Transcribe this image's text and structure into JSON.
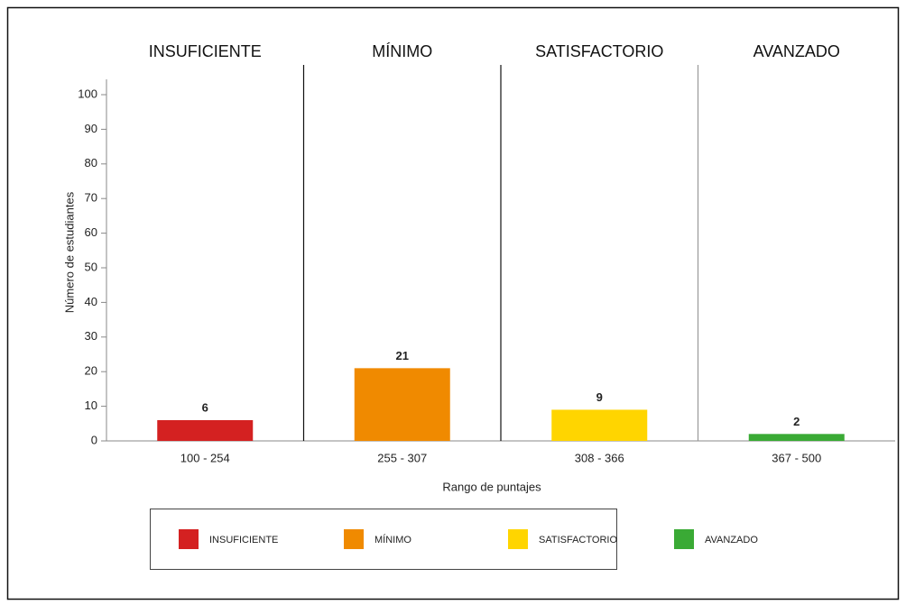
{
  "chart_data": {
    "type": "bar",
    "levels": [
      "INSUFICIENTE",
      "MÍNIMO",
      "SATISFACTORIO",
      "AVANZADO"
    ],
    "categories": [
      "100 - 254",
      "255 - 307",
      "308 - 366",
      "367 - 500"
    ],
    "values": [
      6,
      21,
      9,
      2
    ],
    "colors": [
      "#d42121",
      "#f08a00",
      "#ffd500",
      "#3aaa35"
    ],
    "x_label": "Rango de puntajes",
    "y_label": "Número de estudiantes",
    "ylim": [
      0,
      100
    ],
    "yticks": [
      0,
      10,
      20,
      30,
      40,
      50,
      60,
      70,
      80,
      90,
      100
    ],
    "legend": "bottom"
  }
}
